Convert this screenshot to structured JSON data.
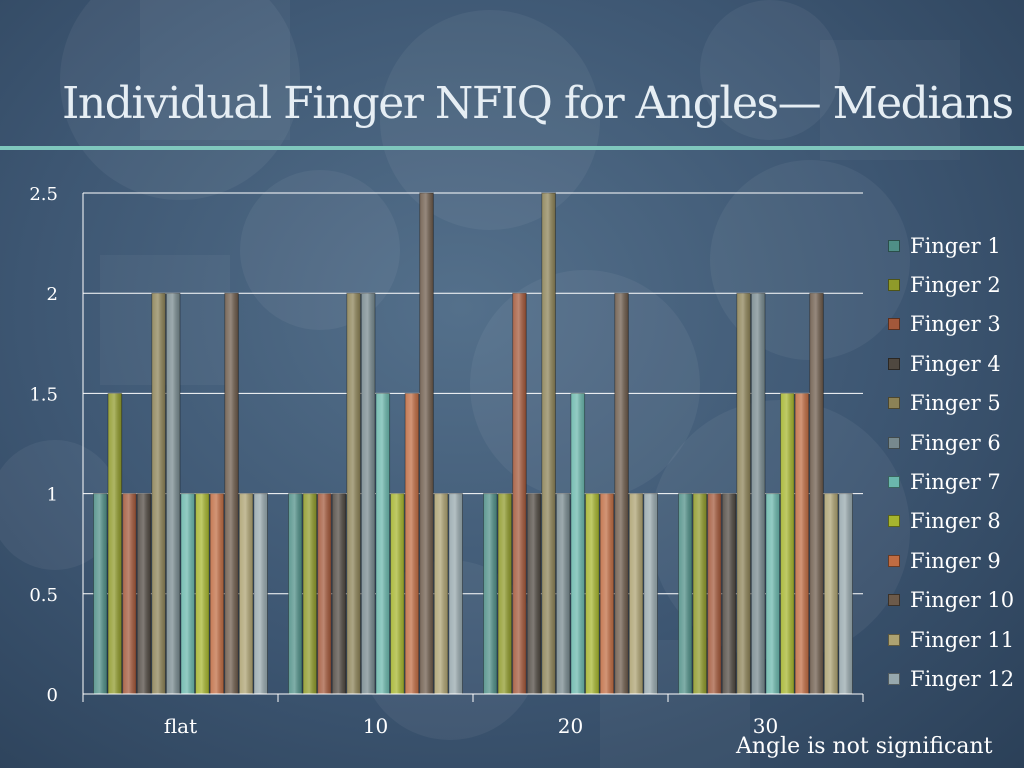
{
  "slide": {
    "title": "Individual Finger NFIQ for Angles— Medians",
    "footnote": "Angle is not significant"
  },
  "chart_data": {
    "type": "bar",
    "categories": [
      "flat",
      "10",
      "20",
      "30"
    ],
    "ylim": [
      0,
      2.5
    ],
    "yticks": [
      0,
      0.5,
      1,
      1.5,
      2,
      2.5
    ],
    "ytick_labels": [
      "0",
      "0.5",
      "1",
      "1.5",
      "2",
      "2.5"
    ],
    "grid": true,
    "legend_position": "right",
    "series": [
      {
        "name": "Finger 1",
        "color": "#4f8f87",
        "values": [
          1,
          1,
          1,
          1
        ]
      },
      {
        "name": "Finger 2",
        "color": "#8f9a2a",
        "values": [
          1.5,
          1,
          1,
          1
        ]
      },
      {
        "name": "Finger 3",
        "color": "#a3583a",
        "values": [
          1,
          1,
          2,
          1
        ]
      },
      {
        "name": "Finger 4",
        "color": "#4f4840",
        "values": [
          1,
          1,
          1,
          1
        ]
      },
      {
        "name": "Finger 5",
        "color": "#8c8256",
        "values": [
          2,
          2,
          2.5,
          2
        ]
      },
      {
        "name": "Finger 6",
        "color": "#77898e",
        "values": [
          2,
          2,
          1,
          2
        ]
      },
      {
        "name": "Finger 7",
        "color": "#6ab7ac",
        "values": [
          1,
          1.5,
          1.5,
          1
        ]
      },
      {
        "name": "Finger 8",
        "color": "#a6b52e",
        "values": [
          1,
          1,
          1,
          1.5
        ]
      },
      {
        "name": "Finger 9",
        "color": "#c06c42",
        "values": [
          1,
          1.5,
          1,
          1.5
        ]
      },
      {
        "name": "Finger 10",
        "color": "#6c5a4a",
        "values": [
          2,
          2.5,
          2,
          2
        ]
      },
      {
        "name": "Finger 11",
        "color": "#ada271",
        "values": [
          1,
          1,
          1,
          1
        ]
      },
      {
        "name": "Finger 12",
        "color": "#97a8ad",
        "values": [
          1,
          1,
          1,
          1
        ]
      }
    ]
  }
}
